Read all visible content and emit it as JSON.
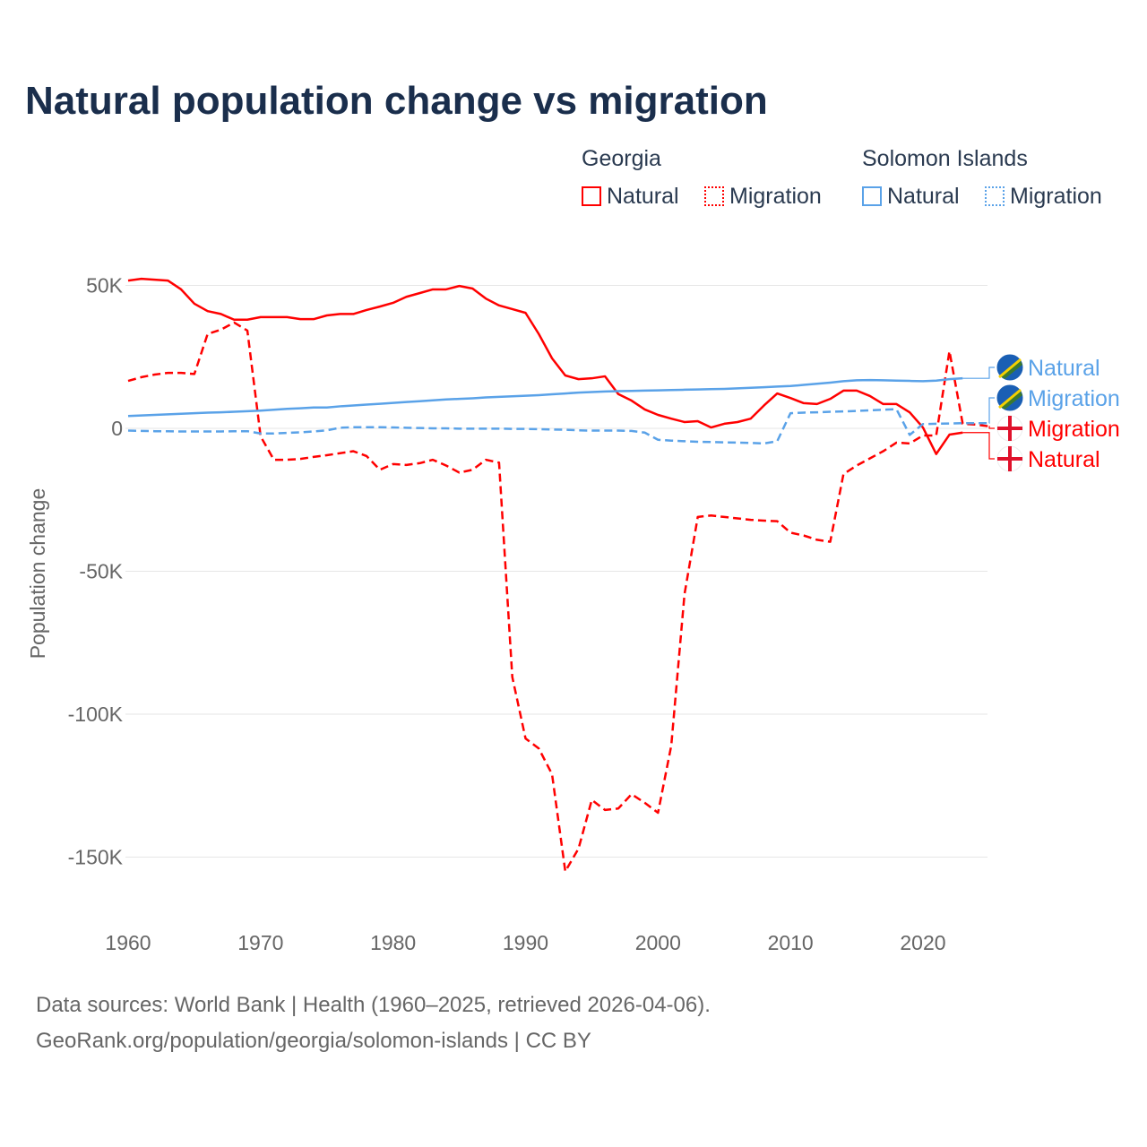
{
  "title": "Natural population change vs migration",
  "legend": {
    "groups": [
      {
        "name": "Georgia",
        "items": [
          "Natural",
          "Migration"
        ],
        "color": "#ff0000"
      },
      {
        "name": "Solomon Islands",
        "items": [
          "Natural",
          "Migration"
        ],
        "color": "#5aa2e8"
      }
    ]
  },
  "footer": {
    "line1": "Data sources: World Bank | Health (1960–2025, retrieved 2026-04-06).",
    "line2": "GeoRank.org/population/georgia/solomon-islands | CC BY"
  },
  "chart_data": {
    "type": "line",
    "title": "Natural population change vs migration",
    "xlabel": "",
    "ylabel": "Population change",
    "xlim": [
      1960,
      2025
    ],
    "ylim": [
      -160000,
      55000
    ],
    "xticks": [
      1960,
      1970,
      1980,
      1990,
      2000,
      2010,
      2020
    ],
    "xtick_labels": [
      "1960",
      "1970",
      "1980",
      "1990",
      "2000",
      "2010",
      "2020"
    ],
    "yticks": [
      50000,
      0,
      -50000,
      -100000,
      -150000
    ],
    "ytick_labels": [
      "50K",
      "0",
      "-50K",
      "-100K",
      "-150K"
    ],
    "grid": true,
    "series": [
      {
        "name": "Georgia Natural",
        "label": "Natural",
        "country": "Georgia",
        "color": "#ff0000",
        "dash": false,
        "start": 1960,
        "values": [
          51.7,
          52.3,
          52,
          51.7,
          48.6,
          43.6,
          41,
          40,
          38,
          38,
          38.9,
          38.9,
          38.9,
          38.2,
          38.2,
          39.5,
          40,
          40,
          41.4,
          42.6,
          43.9,
          46,
          47.3,
          48.6,
          48.6,
          49.8,
          48.9,
          45.4,
          43,
          41.7,
          40.4,
          33,
          24.5,
          18.5,
          17.2,
          17.5,
          18.2,
          12,
          9.7,
          6.6,
          4.7,
          3.4,
          2.2,
          2.5,
          0.3,
          1.6,
          2.2,
          3.4,
          8,
          12.2,
          10.6,
          8.8,
          8.5,
          10.3,
          13.2,
          13.2,
          11.3,
          8.5,
          8.5,
          5.6,
          0.3,
          -9,
          -2.2,
          -1.5
        ]
      },
      {
        "name": "Georgia Migration",
        "label": "Migration",
        "country": "Georgia",
        "color": "#ff0000",
        "dash": true,
        "start": 1960,
        "values": [
          16.6,
          17.9,
          18.8,
          19.4,
          19.4,
          19,
          33,
          34.5,
          37,
          34.2,
          -2.8,
          -11,
          -11,
          -10.7,
          -10,
          -9.4,
          -8.7,
          -8,
          -9.7,
          -14.5,
          -12.5,
          -12.8,
          -12.2,
          -11,
          -13,
          -15.5,
          -14.5,
          -11,
          -12,
          -87,
          -108.5,
          -112,
          -121,
          -155,
          -147,
          -130,
          -133.5,
          -133,
          -128,
          -131,
          -134.5,
          -111,
          -58,
          -31,
          -30.5,
          -31,
          -31.5,
          -32,
          -32.3,
          -32.5,
          -36.5,
          -37.5,
          -39,
          -39.7,
          -16,
          -13,
          -10.5,
          -8,
          -5,
          -5.3,
          -2.5,
          -2.5,
          27,
          1.6,
          1.3,
          0.7
        ]
      },
      {
        "name": "Solomon Islands Natural",
        "label": "Natural",
        "country": "Solomon Islands",
        "color": "#5aa2e8",
        "dash": false,
        "start": 1960,
        "values": [
          4.3,
          4.5,
          4.7,
          4.9,
          5.1,
          5.3,
          5.5,
          5.6,
          5.8,
          6,
          6.2,
          6.5,
          6.8,
          7,
          7.3,
          7.3,
          7.7,
          8,
          8.3,
          8.6,
          8.9,
          9.2,
          9.5,
          9.8,
          10.1,
          10.3,
          10.5,
          10.8,
          11,
          11.2,
          11.4,
          11.6,
          11.9,
          12.2,
          12.5,
          12.7,
          12.9,
          13,
          13.1,
          13.2,
          13.3,
          13.4,
          13.5,
          13.6,
          13.7,
          13.8,
          14,
          14.2,
          14.4,
          14.6,
          14.8,
          15.2,
          15.6,
          16,
          16.5,
          16.8,
          16.9,
          16.8,
          16.7,
          16.6,
          16.5,
          16.7,
          17.2,
          17.5
        ]
      },
      {
        "name": "Solomon Islands Migration",
        "label": "Migration",
        "country": "Solomon Islands",
        "color": "#5aa2e8",
        "dash": true,
        "start": 1960,
        "values": [
          -0.8,
          -0.9,
          -1,
          -1,
          -1.1,
          -1.1,
          -1.1,
          -1.1,
          -1,
          -1,
          -1.8,
          -1.8,
          -1.6,
          -1.4,
          -1.1,
          -0.7,
          0.2,
          0.4,
          0.4,
          0.4,
          0.3,
          0.2,
          0.1,
          0,
          0,
          -0.1,
          -0.1,
          -0.1,
          -0.1,
          -0.2,
          -0.2,
          -0.3,
          -0.4,
          -0.5,
          -0.7,
          -0.8,
          -0.8,
          -0.8,
          -0.9,
          -1.5,
          -4,
          -4.3,
          -4.5,
          -4.7,
          -4.8,
          -4.9,
          -5,
          -5.1,
          -5.3,
          -4.5,
          5.3,
          5.5,
          5.6,
          5.8,
          5.9,
          6.1,
          6.3,
          6.5,
          6.7,
          -2.3,
          1.5,
          1.6,
          1.7,
          1.8,
          1.8,
          1.8
        ]
      }
    ]
  }
}
